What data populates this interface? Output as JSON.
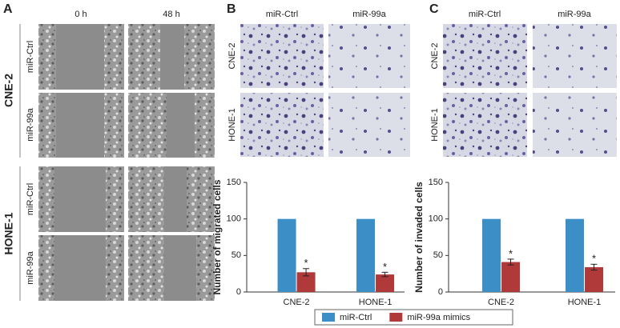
{
  "figure": {
    "a": {
      "label": "A",
      "columns": [
        "0 h",
        "48 h"
      ],
      "groups": [
        {
          "label": "CNE-2",
          "rows": [
            "miR-Ctrl",
            "miR-99a"
          ]
        },
        {
          "label": "HONE-1",
          "rows": [
            "miR-Ctrl",
            "miR-99a"
          ]
        }
      ]
    },
    "b": {
      "label": "B",
      "columns": [
        "miR-Ctrl",
        "miR-99a"
      ],
      "rows": [
        "CNE-2",
        "HONE-1"
      ]
    },
    "c": {
      "label": "C",
      "columns": [
        "miR-Ctrl",
        "miR-99a"
      ],
      "rows": [
        "CNE-2",
        "HONE-1"
      ]
    }
  },
  "chart_data": [
    {
      "type": "bar",
      "ylabel": "Number of migrated cells",
      "categories": [
        "CNE-2",
        "HONE-1"
      ],
      "series": [
        {
          "name": "miR-Ctrl",
          "color": "#3b8ec6",
          "values": [
            100,
            100
          ]
        },
        {
          "name": "miR-99a mimics",
          "color": "#b03a3a",
          "values": [
            27,
            24
          ],
          "errors": [
            5,
            3
          ],
          "significance_labels": [
            "*",
            "*"
          ]
        }
      ],
      "ylim": [
        0,
        150
      ],
      "yticks": [
        0,
        50,
        100,
        150
      ],
      "legend": "bottom"
    },
    {
      "type": "bar",
      "ylabel": "Number of invaded cells",
      "categories": [
        "CNE-2",
        "HONE-1"
      ],
      "series": [
        {
          "name": "miR-Ctrl",
          "color": "#3b8ec6",
          "values": [
            100,
            100
          ]
        },
        {
          "name": "miR-99a mimics",
          "color": "#b03a3a",
          "values": [
            41,
            34
          ],
          "errors": [
            4,
            4
          ],
          "significance_labels": [
            "*",
            "*"
          ]
        }
      ],
      "ylim": [
        0,
        150
      ],
      "yticks": [
        0,
        50,
        100,
        150
      ],
      "legend": "bottom"
    }
  ]
}
